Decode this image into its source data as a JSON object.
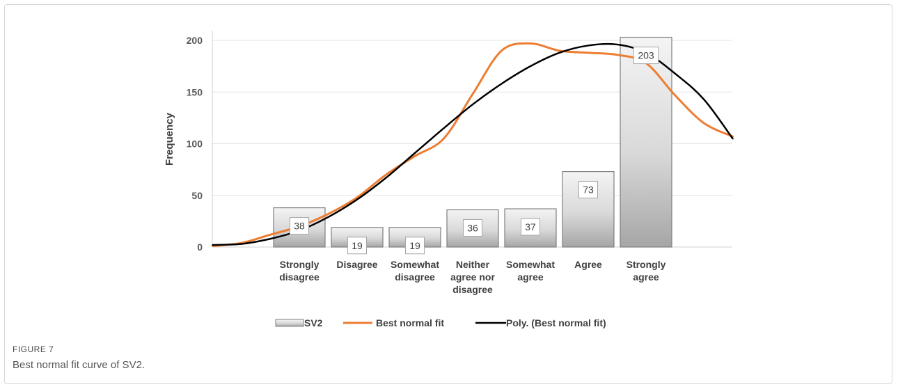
{
  "figure": {
    "label": "FIGURE 7",
    "caption": "Best normal fit curve of SV2."
  },
  "chart_data": {
    "type": "bar",
    "title": "",
    "xlabel": "",
    "ylabel": "Frequency",
    "ylim": [
      0,
      200
    ],
    "yticks": [
      0,
      50,
      100,
      150,
      200
    ],
    "grid": true,
    "legend_position": "bottom",
    "categories": [
      [
        "Strongly",
        "disagree"
      ],
      [
        "Disagree"
      ],
      [
        "Somewhat",
        "disagree"
      ],
      [
        "Neither",
        "agree nor",
        "disagree"
      ],
      [
        "Somewhat",
        "agree"
      ],
      [
        "Agree"
      ],
      [
        "Strongly",
        "agree"
      ]
    ],
    "series": [
      {
        "name": "SV2",
        "type": "bar",
        "values": [
          38,
          19,
          19,
          36,
          37,
          73,
          203
        ],
        "data_labels": [
          "38",
          "19",
          "19",
          "36",
          "37",
          "73",
          "203"
        ]
      },
      {
        "name": "Best normal fit",
        "type": "line",
        "color": "#ed7d31",
        "x": [
          -1.5,
          -1,
          -0.5,
          0,
          0.5,
          1,
          1.5,
          2,
          2.5,
          3,
          3.5,
          4,
          4.5,
          5,
          5.5,
          6,
          6.5,
          7,
          7.5
        ],
        "values": [
          1,
          4,
          12,
          20,
          32,
          48,
          70,
          88,
          105,
          148,
          190,
          197,
          190,
          188,
          186,
          178,
          147,
          120,
          107
        ]
      },
      {
        "name": "Poly. (Best normal fit)",
        "type": "line",
        "color": "#000000",
        "x": [
          -1.5,
          -1,
          -0.5,
          0,
          0.5,
          1,
          1.5,
          2,
          2.5,
          3,
          3.5,
          4,
          4.5,
          5,
          5.5,
          6,
          6.5,
          7,
          7.5
        ],
        "values": [
          2,
          3,
          8,
          16,
          29,
          46,
          67,
          91,
          115,
          138,
          158,
          175,
          188,
          195,
          196,
          188,
          168,
          143,
          105
        ]
      }
    ]
  }
}
